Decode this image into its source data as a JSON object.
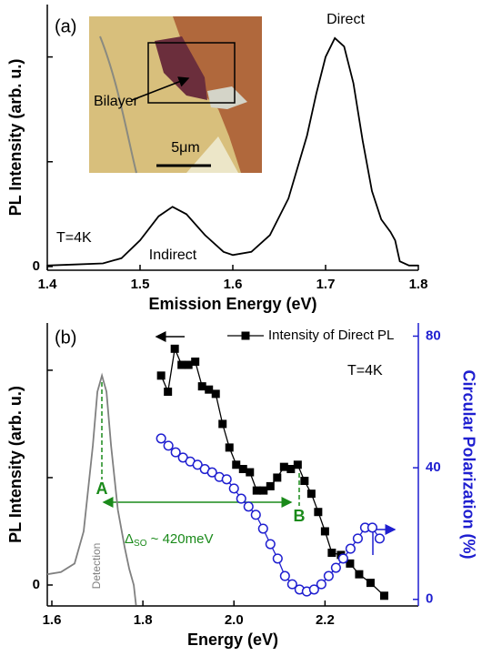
{
  "chart_data": [
    {
      "type": "line",
      "panel_label": "(a)",
      "xlabel": "Emission Energy (eV)",
      "ylabel": "PL Intensity (arb. u.)",
      "x": [
        1.4,
        1.43,
        1.46,
        1.48,
        1.5,
        1.52,
        1.535,
        1.55,
        1.57,
        1.59,
        1.6,
        1.62,
        1.64,
        1.66,
        1.68,
        1.69,
        1.7,
        1.71,
        1.72,
        1.73,
        1.74,
        1.75,
        1.76,
        1.77,
        1.775,
        1.78,
        1.79,
        1.8
      ],
      "values": [
        0.01,
        0.02,
        0.03,
        0.08,
        0.25,
        0.48,
        0.57,
        0.5,
        0.3,
        0.14,
        0.11,
        0.14,
        0.3,
        0.65,
        1.25,
        1.65,
        2.0,
        2.18,
        2.1,
        1.75,
        1.2,
        0.72,
        0.45,
        0.33,
        0.25,
        0.05,
        0.01,
        0.01
      ],
      "color": "#000000",
      "xlim": [
        1.4,
        1.8
      ],
      "xticks": [
        1.4,
        1.5,
        1.6,
        1.7,
        1.8
      ],
      "ylim": [
        -0.035,
        2.5
      ],
      "yticks": [
        0
      ],
      "yticks_unlabeled": [
        1,
        2
      ],
      "annotations": {
        "direct": "Direct",
        "indirect": "Indirect",
        "temperature": "T=4K"
      },
      "inset": {
        "label": "Bilayer",
        "scale": "5μm"
      }
    },
    {
      "type": "line",
      "panel_label": "(b)",
      "xlabel": "Energy (eV)",
      "ylabel": "PL Intensity (arb. u.)",
      "y2label": "Circular  Polarization (%)",
      "legend": "top",
      "series": [
        {
          "name": "Intensity of Direct PL",
          "color": "#000000",
          "marker": "square",
          "x": [
            1.84,
            1.855,
            1.87,
            1.885,
            1.9,
            1.915,
            1.93,
            1.945,
            1.96,
            1.975,
            1.99,
            2.005,
            2.02,
            2.035,
            2.05,
            2.065,
            2.08,
            2.095,
            2.11,
            2.125,
            2.14,
            2.155,
            2.17,
            2.185,
            2.2,
            2.215,
            2.235,
            2.255,
            2.275,
            2.3,
            2.33
          ],
          "values": [
            1.95,
            1.8,
            2.2,
            2.05,
            2.05,
            2.08,
            1.85,
            1.82,
            1.78,
            1.5,
            1.28,
            1.12,
            1.08,
            1.05,
            0.88,
            0.88,
            0.92,
            1.0,
            1.1,
            1.08,
            1.12,
            0.97,
            0.85,
            0.68,
            0.5,
            0.3,
            0.28,
            0.2,
            0.1,
            0.02,
            -0.1
          ]
        },
        {
          "color": "#1f1fd0",
          "marker": "circle",
          "axis": "y2",
          "x": [
            1.84,
            1.856,
            1.872,
            1.888,
            1.904,
            1.92,
            1.936,
            1.952,
            1.968,
            1.984,
            2.0,
            2.016,
            2.032,
            2.048,
            2.064,
            2.08,
            2.096,
            2.112,
            2.128,
            2.144,
            2.16,
            2.176,
            2.192,
            2.208,
            2.224,
            2.24,
            2.256,
            2.272,
            2.288,
            2.304,
            2.32
          ],
          "values": [
            48.9,
            46.7,
            44.7,
            43.1,
            41.9,
            40.9,
            39.6,
            38.6,
            37.2,
            36.5,
            33.7,
            30.6,
            28.2,
            25.7,
            21.5,
            16.8,
            12.4,
            7.1,
            4.6,
            3.0,
            2.4,
            3.0,
            4.6,
            7.1,
            9.6,
            12.4,
            15.4,
            18.5,
            21.8,
            21.8,
            18.5
          ]
        },
        {
          "color": "#808080",
          "x": [
            1.59,
            1.62,
            1.65,
            1.67,
            1.69,
            1.7,
            1.71,
            1.72,
            1.73,
            1.745,
            1.76,
            1.77,
            1.78,
            1.785
          ],
          "values": [
            0.1,
            0.12,
            0.2,
            0.5,
            1.3,
            1.8,
            1.95,
            1.8,
            1.3,
            0.7,
            0.35,
            0.15,
            0.0,
            -0.19
          ]
        }
      ],
      "xlim": [
        1.59,
        2.405
      ],
      "xticks": [
        1.6,
        1.8,
        {
          "value": 2,
          "label": "2.0"
        },
        2.2
      ],
      "ylim": [
        -0.195,
        2.44
      ],
      "yticks": [
        0
      ],
      "yticks_unlabeled": [
        1,
        2
      ],
      "y2lim": [
        -2,
        84
      ],
      "y2ticks": [
        0,
        40,
        80
      ],
      "y2color": "#1f1fd0",
      "annotations": {
        "temperature": "T=4K",
        "peak_a": "A",
        "peak_b": "B",
        "delta": "Δ",
        "delta_sub": "SO",
        "delta_rest": " ~ 420meV",
        "detection": "Detection"
      }
    }
  ]
}
